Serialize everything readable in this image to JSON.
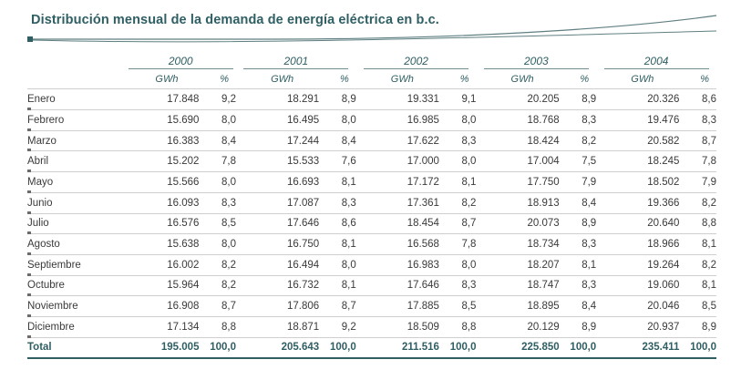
{
  "title": "Distribución mensual de la demanda de energía eléctrica en b.c.",
  "years": [
    "2000",
    "2001",
    "2002",
    "2003",
    "2004"
  ],
  "unit_gwh": "GWh",
  "unit_pct": "%",
  "rows": [
    {
      "month": "Enero",
      "cells": [
        "17.848",
        "9,2",
        "18.291",
        "8,9",
        "19.331",
        "9,1",
        "20.205",
        "8,9",
        "20.326",
        "8,6"
      ]
    },
    {
      "month": "Febrero",
      "cells": [
        "15.690",
        "8,0",
        "16.495",
        "8,0",
        "16.985",
        "8,0",
        "18.768",
        "8,3",
        "19.476",
        "8,3"
      ]
    },
    {
      "month": "Marzo",
      "cells": [
        "16.383",
        "8,4",
        "17.244",
        "8,4",
        "17.622",
        "8,3",
        "18.424",
        "8,2",
        "20.582",
        "8,7"
      ]
    },
    {
      "month": "Abril",
      "cells": [
        "15.202",
        "7,8",
        "15.533",
        "7,6",
        "17.000",
        "8,0",
        "17.004",
        "7,5",
        "18.245",
        "7,8"
      ]
    },
    {
      "month": "Mayo",
      "cells": [
        "15.566",
        "8,0",
        "16.693",
        "8,1",
        "17.172",
        "8,1",
        "17.750",
        "7,9",
        "18.502",
        "7,9"
      ]
    },
    {
      "month": "Junio",
      "cells": [
        "16.093",
        "8,3",
        "17.087",
        "8,3",
        "17.361",
        "8,2",
        "18.913",
        "8,4",
        "19.366",
        "8,2"
      ]
    },
    {
      "month": "Julio",
      "cells": [
        "16.576",
        "8,5",
        "17.646",
        "8,6",
        "18.454",
        "8,7",
        "20.073",
        "8,9",
        "20.640",
        "8,8"
      ]
    },
    {
      "month": "Agosto",
      "cells": [
        "15.638",
        "8,0",
        "16.750",
        "8,1",
        "16.568",
        "7,8",
        "18.734",
        "8,3",
        "18.966",
        "8,1"
      ]
    },
    {
      "month": "Septiembre",
      "cells": [
        "16.002",
        "8,2",
        "16.494",
        "8,0",
        "16.983",
        "8,0",
        "18.207",
        "8,1",
        "19.264",
        "8,2"
      ]
    },
    {
      "month": "Octubre",
      "cells": [
        "15.964",
        "8,2",
        "16.732",
        "8,1",
        "17.646",
        "8,3",
        "18.747",
        "8,3",
        "19.060",
        "8,1"
      ]
    },
    {
      "month": "Noviembre",
      "cells": [
        "16.908",
        "8,7",
        "17.806",
        "8,7",
        "17.885",
        "8,5",
        "18.895",
        "8,4",
        "20.046",
        "8,5"
      ]
    },
    {
      "month": "Diciembre",
      "cells": [
        "17.134",
        "8,8",
        "18.871",
        "9,2",
        "18.509",
        "8,8",
        "20.129",
        "8,9",
        "20.937",
        "8,9"
      ]
    }
  ],
  "total": {
    "label": "Total",
    "cells": [
      "195.005",
      "100,0",
      "205.643",
      "100,0",
      "211.516",
      "100,0",
      "225.850",
      "100,0",
      "235.411",
      "100,0"
    ]
  },
  "colors": {
    "accent": "#2f5f63",
    "rule": "#cfcfcf"
  }
}
